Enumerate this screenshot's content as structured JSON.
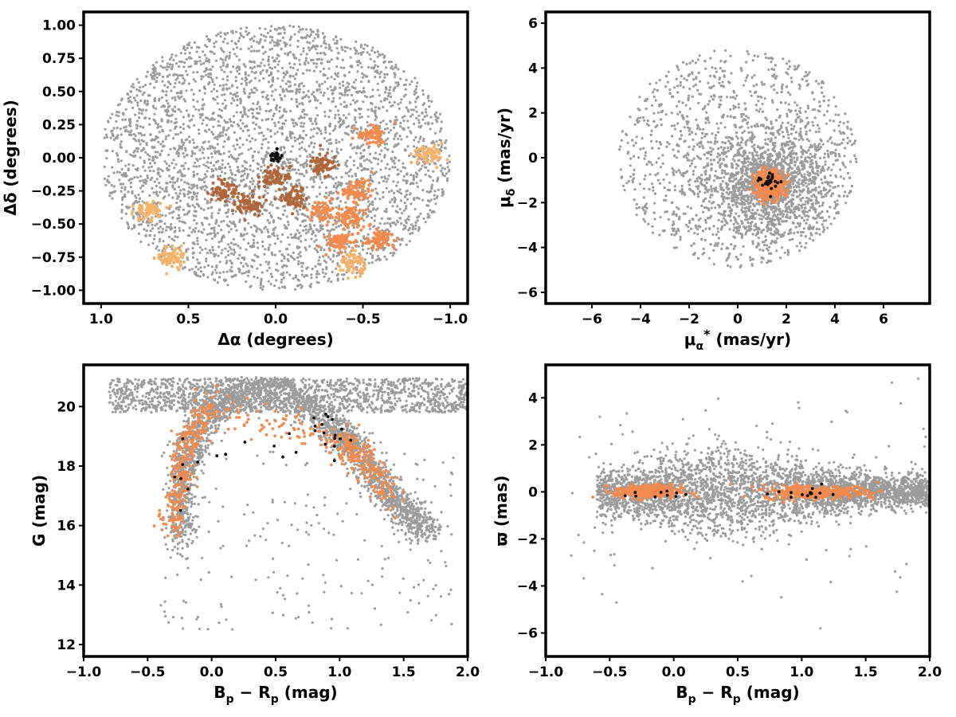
{
  "colors": {
    "field": "#9b9b9b",
    "member_light": "#f4b36c",
    "member_orange": "#f28a4e",
    "member_dark": "#b0663a",
    "core": "#111111"
  },
  "chart_data": [
    {
      "id": "sky",
      "type": "scatter",
      "xlabel": "Δα (degrees)",
      "ylabel": "Δδ (degrees)",
      "xlim": [
        1.1,
        -1.1
      ],
      "ylim": [
        -1.1,
        1.1
      ],
      "xinvert": true,
      "xticks": [
        1.0,
        0.5,
        0.0,
        -0.5,
        -1.0
      ],
      "xtick_labels": [
        "1.0",
        "0.5",
        "0.0",
        "−0.5",
        "−1.0"
      ],
      "yticks": [
        1.0,
        0.75,
        0.5,
        0.25,
        0.0,
        -0.25,
        -0.5,
        -0.75,
        -1.0
      ],
      "ytick_labels": [
        "1.00",
        "0.75",
        "0.50",
        "0.25",
        "0.00",
        "−0.25",
        "−0.50",
        "−0.75",
        "−1.00"
      ],
      "series": [
        {
          "role": "field",
          "shape": "disk",
          "center": [
            0.0,
            0.0
          ],
          "radius": 1.0
        },
        {
          "role": "member_orange",
          "clumps": [
            [
              -0.55,
              0.18
            ],
            [
              -0.27,
              -0.4
            ],
            [
              -0.43,
              -0.45
            ],
            [
              -0.6,
              -0.62
            ],
            [
              -0.47,
              -0.25
            ],
            [
              -0.38,
              -0.63
            ]
          ]
        },
        {
          "role": "member_dark",
          "clumps": [
            [
              -0.27,
              -0.05
            ],
            [
              0.0,
              -0.15
            ],
            [
              0.3,
              -0.25
            ],
            [
              -0.1,
              -0.3
            ],
            [
              0.15,
              -0.35
            ]
          ]
        },
        {
          "role": "member_light",
          "clumps": [
            [
              0.72,
              -0.4
            ],
            [
              0.6,
              -0.75
            ],
            [
              -0.87,
              0.02
            ],
            [
              -0.43,
              -0.8
            ]
          ]
        },
        {
          "role": "core",
          "clumps": [
            [
              0.0,
              0.0
            ]
          ]
        }
      ]
    },
    {
      "id": "pm",
      "type": "scatter",
      "xlabel": "μα* (mas/yr)",
      "ylabel": "μδ (mas/yr)",
      "xlim": [
        -7.9,
        7.9
      ],
      "ylim": [
        -6.5,
        6.5
      ],
      "xticks": [
        -6,
        -4,
        -2,
        0,
        2,
        4,
        6
      ],
      "xtick_labels": [
        "−6",
        "−4",
        "−2",
        "0",
        "2",
        "4",
        "6"
      ],
      "yticks": [
        6,
        4,
        2,
        0,
        -2,
        -4,
        -6
      ],
      "ytick_labels": [
        "6",
        "4",
        "2",
        "0",
        "−2",
        "−4",
        "−6"
      ],
      "series": [
        {
          "role": "field",
          "shape": "disk",
          "center": [
            0.0,
            0.0
          ],
          "radius": 4.9
        },
        {
          "role": "member_orange",
          "clumps": [
            [
              1.3,
              -1.2
            ]
          ]
        },
        {
          "role": "core",
          "clumps": [
            [
              1.3,
              -1.0
            ]
          ]
        }
      ]
    },
    {
      "id": "cmd",
      "type": "scatter",
      "xlabel": "Bp − Rp (mag)",
      "ylabel": "G (mag)",
      "xlim": [
        -1.0,
        2.0
      ],
      "ylim": [
        11.6,
        21.4
      ],
      "xticks": [
        -1.0,
        -0.5,
        0.0,
        0.5,
        1.0,
        1.5,
        2.0
      ],
      "xtick_labels": [
        "−1.0",
        "−0.5",
        "0.0",
        "0.5",
        "1.0",
        "1.5",
        "2.0"
      ],
      "yticks": [
        20,
        18,
        16,
        14,
        12
      ],
      "ytick_labels": [
        "20",
        "18",
        "16",
        "14",
        "12"
      ],
      "series": [
        {
          "role": "field",
          "track": [
            [
              -0.25,
              15.5
            ],
            [
              -0.22,
              17.5
            ],
            [
              -0.15,
              19.0
            ],
            [
              0.1,
              20.2
            ],
            [
              0.5,
              20.8
            ],
            [
              0.95,
              19.2
            ],
            [
              1.1,
              18.7
            ],
            [
              1.3,
              17.5
            ],
            [
              1.5,
              16.5
            ],
            [
              1.7,
              15.8
            ]
          ]
        },
        {
          "role": "member_orange",
          "track": [
            [
              -0.3,
              15.8
            ],
            [
              -0.25,
              17.5
            ],
            [
              -0.2,
              19.0
            ],
            [
              0.0,
              20.0
            ],
            [
              1.0,
              18.8
            ],
            [
              1.2,
              18.3
            ],
            [
              1.4,
              17.0
            ]
          ]
        },
        {
          "role": "core",
          "track": [
            [
              -0.3,
              16.8
            ],
            [
              -0.22,
              18.5
            ],
            [
              1.0,
              18.9
            ],
            [
              0.85,
              19.8
            ]
          ]
        }
      ]
    },
    {
      "id": "plx",
      "type": "scatter",
      "xlabel": "Bp − Rp (mag)",
      "ylabel": "ϖ (mas)",
      "xlim": [
        -1.0,
        2.0
      ],
      "ylim": [
        -7.0,
        5.4
      ],
      "xticks": [
        -1.0,
        -0.5,
        0.0,
        0.5,
        1.0,
        1.5,
        2.0
      ],
      "xtick_labels": [
        "−1.0",
        "−0.5",
        "0.0",
        "0.5",
        "1.0",
        "1.5",
        "2.0"
      ],
      "yticks": [
        4,
        2,
        0,
        -2,
        -4,
        -6
      ],
      "ytick_labels": [
        "4",
        "2",
        "0",
        "−2",
        "−4",
        "−6"
      ],
      "series": [
        {
          "role": "field",
          "band": {
            "center": 0.0,
            "spread": 1.0
          }
        },
        {
          "role": "member_orange",
          "band": {
            "center": 0.0,
            "spread": 0.15
          }
        },
        {
          "role": "core",
          "band": {
            "center": -0.05,
            "spread": 0.1
          }
        }
      ]
    }
  ]
}
